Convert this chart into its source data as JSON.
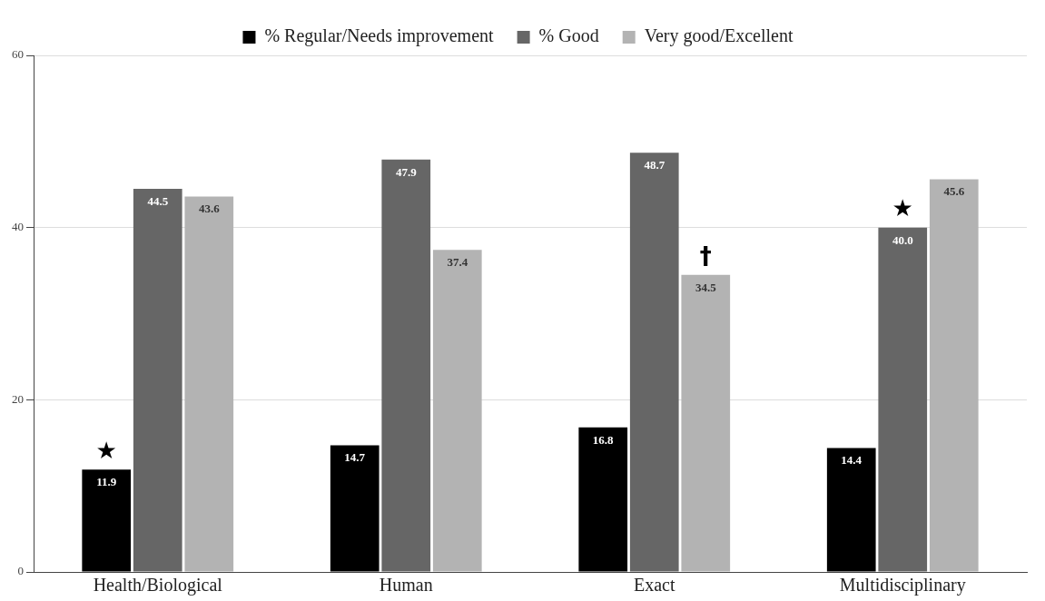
{
  "chart_data": {
    "type": "bar",
    "categories": [
      "Health/Biological",
      "Human",
      "Exact",
      "Multidisciplinary"
    ],
    "series": [
      {
        "name": "% Regular/Needs improvement",
        "color": "#000000",
        "values": [
          11.9,
          14.7,
          16.8,
          14.4
        ],
        "value_labels": [
          "11.9",
          "14.7",
          "16.8",
          "14.4"
        ]
      },
      {
        "name": "% Good",
        "color": "#666666",
        "values": [
          44.5,
          47.9,
          48.7,
          40.0
        ],
        "value_labels": [
          "44.5",
          "47.9",
          "48.7",
          "40.0"
        ]
      },
      {
        "name": "Very good/Excellent",
        "color": "#b3b3b3",
        "values": [
          43.6,
          37.4,
          34.5,
          45.6
        ],
        "value_labels": [
          "43.6",
          "37.4",
          "34.5",
          "45.6"
        ]
      }
    ],
    "ylim": [
      0,
      60
    ],
    "yticks": [
      0,
      20,
      40,
      60
    ],
    "grid": "y",
    "legend": "top",
    "annotations": [
      "★",
      "†",
      "★"
    ]
  }
}
